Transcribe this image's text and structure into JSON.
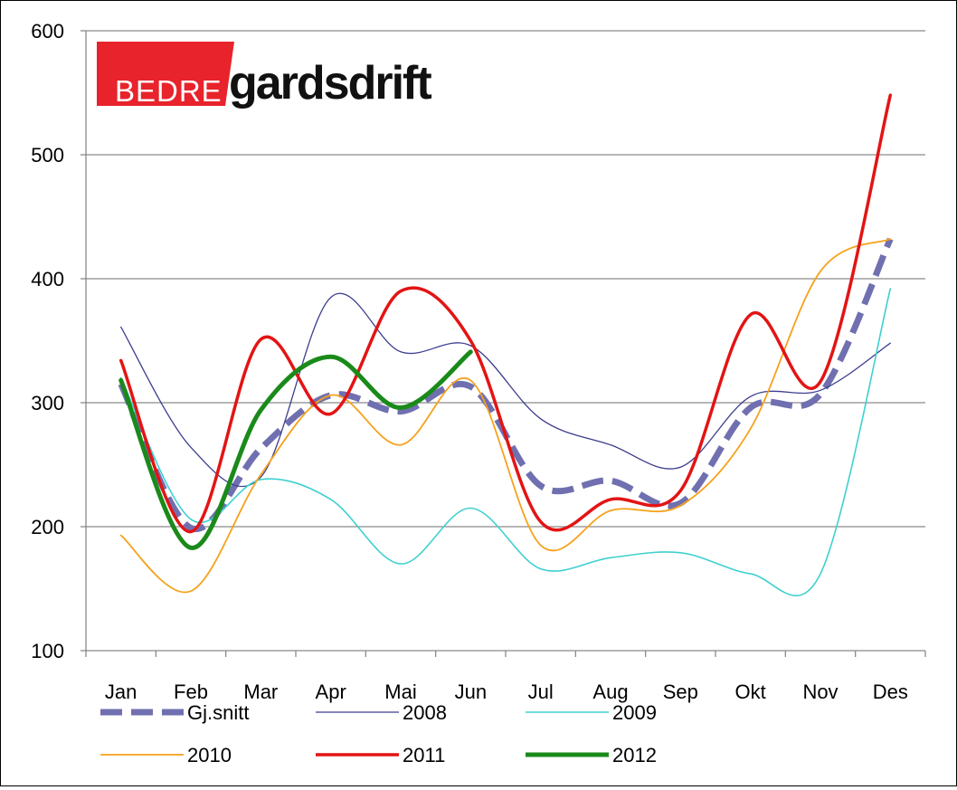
{
  "logo": {
    "left_text": "BEDRE",
    "right_text": "gardsdrift",
    "brand_color": "#e8232b"
  },
  "chart_data": {
    "type": "line",
    "title": "",
    "xlabel": "",
    "ylabel": "",
    "categories": [
      "Jan",
      "Feb",
      "Mar",
      "Apr",
      "Mai",
      "Jun",
      "Jul",
      "Aug",
      "Sep",
      "Okt",
      "Nov",
      "Des"
    ],
    "yticks": [
      100,
      200,
      300,
      400,
      500,
      600
    ],
    "ylim": [
      100,
      600
    ],
    "grid": true,
    "legend_position": "bottom",
    "series": [
      {
        "name": "Gj.snitt",
        "color": "#7070b0",
        "dashed": true,
        "width": 7,
        "values": [
          315,
          199,
          263,
          306,
          293,
          313,
          233,
          237,
          219,
          296,
          307,
          432
        ]
      },
      {
        "name": "2008",
        "color": "#3d3d8f",
        "dashed": false,
        "width": 1.3,
        "values": [
          361,
          264,
          240,
          385,
          341,
          346,
          287,
          266,
          248,
          305,
          310,
          348
        ]
      },
      {
        "name": "2009",
        "color": "#3fd0d0",
        "dashed": false,
        "width": 1.6,
        "values": [
          320,
          206,
          238,
          222,
          170,
          215,
          166,
          175,
          179,
          162,
          162,
          392
        ]
      },
      {
        "name": "2010",
        "color": "#f7a11b",
        "dashed": false,
        "width": 1.8,
        "values": [
          193,
          148,
          242,
          306,
          266,
          318,
          185,
          213,
          217,
          279,
          406,
          432
        ]
      },
      {
        "name": "2011",
        "color": "#e31414",
        "dashed": false,
        "width": 3.5,
        "values": [
          334,
          196,
          351,
          291,
          390,
          350,
          204,
          222,
          229,
          371,
          317,
          548
        ]
      },
      {
        "name": "2012",
        "color": "#1a8a1a",
        "dashed": false,
        "width": 5,
        "values": [
          318,
          183,
          294,
          337,
          296,
          341,
          null,
          null,
          null,
          null,
          null,
          null
        ]
      }
    ]
  }
}
